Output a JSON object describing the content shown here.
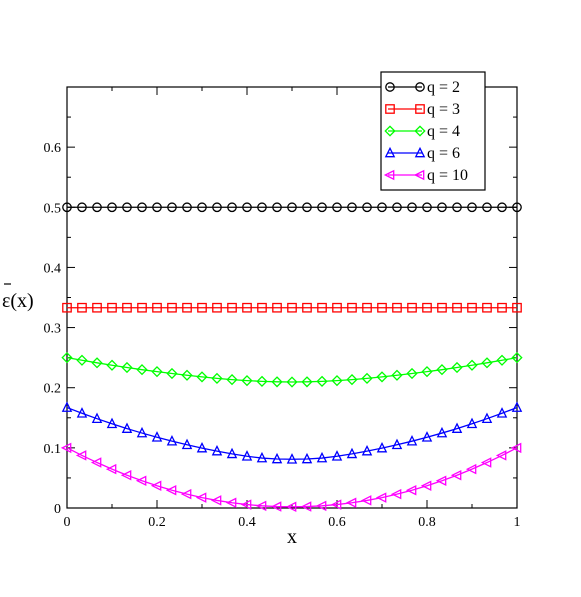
{
  "chart_data": {
    "type": "line",
    "xlabel": "x",
    "ylabel": "ε(x)",
    "ylabel_overbar": true,
    "xlim": [
      0,
      1
    ],
    "ylim": [
      0,
      0.7
    ],
    "xticks": [
      "0",
      "0.2",
      "0.4",
      "0.6",
      "0.8",
      "1"
    ],
    "yticks": [
      "0",
      "0.1",
      "0.2",
      "0.3",
      "0.4",
      "0.5",
      "0.6"
    ],
    "grid": false,
    "legend_position": "top-right",
    "x": [
      0,
      0.0333,
      0.0667,
      0.1,
      0.1333,
      0.1667,
      0.2,
      0.2333,
      0.2667,
      0.3,
      0.3333,
      0.3667,
      0.4,
      0.4333,
      0.4667,
      0.5,
      0.5333,
      0.5667,
      0.6,
      0.6333,
      0.6667,
      0.7,
      0.7333,
      0.7667,
      0.8,
      0.8333,
      0.8667,
      0.9,
      0.9333,
      0.9667,
      1
    ],
    "series": [
      {
        "name": "q = 2",
        "color": "#000000",
        "marker": "circle",
        "values": [
          0.5,
          0.5,
          0.5,
          0.5,
          0.5,
          0.5,
          0.5,
          0.5,
          0.5,
          0.5,
          0.5,
          0.5,
          0.5,
          0.5,
          0.5,
          0.5,
          0.5,
          0.5,
          0.5,
          0.5,
          0.5,
          0.5,
          0.5,
          0.5,
          0.5,
          0.5,
          0.5,
          0.5,
          0.5,
          0.5,
          0.5
        ]
      },
      {
        "name": "q = 3",
        "color": "#ff0000",
        "marker": "square",
        "values": [
          0.333,
          0.333,
          0.333,
          0.333,
          0.333,
          0.333,
          0.333,
          0.333,
          0.333,
          0.333,
          0.333,
          0.333,
          0.333,
          0.333,
          0.333,
          0.333,
          0.333,
          0.333,
          0.333,
          0.333,
          0.333,
          0.333,
          0.333,
          0.333,
          0.333,
          0.333,
          0.333,
          0.333,
          0.333,
          0.333,
          0.333
        ]
      },
      {
        "name": "q = 4",
        "color": "#00ff00",
        "marker": "diamond",
        "values": [
          0.25,
          0.2456,
          0.2414,
          0.2374,
          0.2336,
          0.23,
          0.2267,
          0.2236,
          0.2207,
          0.218,
          0.2155,
          0.2135,
          0.2118,
          0.2106,
          0.2098,
          0.2095,
          0.2098,
          0.2106,
          0.2118,
          0.2135,
          0.2155,
          0.218,
          0.2207,
          0.2236,
          0.2267,
          0.23,
          0.2336,
          0.2374,
          0.2414,
          0.2456,
          0.25
        ]
      },
      {
        "name": "q = 6",
        "color": "#0000ff",
        "marker": "triangle-up",
        "values": [
          0.167,
          0.1575,
          0.1485,
          0.14,
          0.132,
          0.1246,
          0.1176,
          0.1111,
          0.1051,
          0.0996,
          0.0946,
          0.09,
          0.086,
          0.083,
          0.0815,
          0.081,
          0.0815,
          0.083,
          0.086,
          0.09,
          0.0946,
          0.0996,
          0.1051,
          0.1111,
          0.1176,
          0.1246,
          0.132,
          0.14,
          0.1485,
          0.1575,
          0.167
        ]
      },
      {
        "name": "q = 10",
        "color": "#ff00ff",
        "marker": "triangle-left",
        "values": [
          0.1,
          0.0874,
          0.0756,
          0.0646,
          0.0545,
          0.0453,
          0.037,
          0.0295,
          0.023,
          0.0173,
          0.0126,
          0.0087,
          0.0057,
          0.0036,
          0.0024,
          0.002,
          0.0024,
          0.0036,
          0.0057,
          0.0087,
          0.0126,
          0.0173,
          0.023,
          0.0295,
          0.037,
          0.0453,
          0.0545,
          0.0646,
          0.0756,
          0.0874,
          0.1
        ]
      }
    ]
  }
}
